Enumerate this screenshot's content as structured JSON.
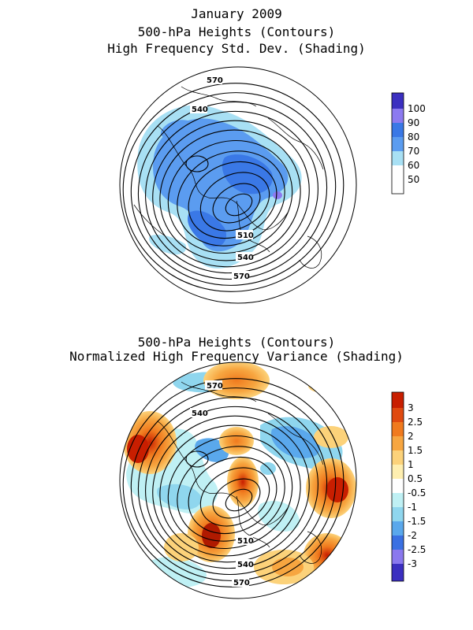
{
  "top_panel": {
    "title_lines": [
      "January 2009",
      "500-hPa Heights (Contours)",
      "High Frequency Std. Dev. (Shading)"
    ],
    "colorbar": {
      "labels": [
        "100",
        "90",
        "80",
        "70",
        "60",
        "50"
      ],
      "colors": [
        "#3b2fc0",
        "#8c7af0",
        "#3a78e6",
        "#5b9cf0",
        "#a8e0f4",
        "#ffffff"
      ]
    },
    "contour_labels": [
      "570",
      "540",
      "510",
      "540",
      "570"
    ]
  },
  "bottom_panel": {
    "title_lines": [
      "500-hPa Heights (Contours)",
      "Normalized High Frequency Variance (Shading)"
    ],
    "colorbar": {
      "labels": [
        "3",
        "2.5",
        "2",
        "1.5",
        "1",
        "0.5",
        "-0.5",
        "-1",
        "-1.5",
        "-2",
        "-2.5",
        "-3"
      ],
      "colors": [
        "#c81e00",
        "#e04a10",
        "#f07a1e",
        "#f7a640",
        "#fcd27a",
        "#ffefb0",
        "#ffffff",
        "#bff0f4",
        "#8fd6ee",
        "#5aa8ec",
        "#3a70e2",
        "#8a78ee",
        "#3b2fc0"
      ]
    },
    "contour_labels": [
      "570",
      "540",
      "510",
      "540",
      "570"
    ]
  }
}
